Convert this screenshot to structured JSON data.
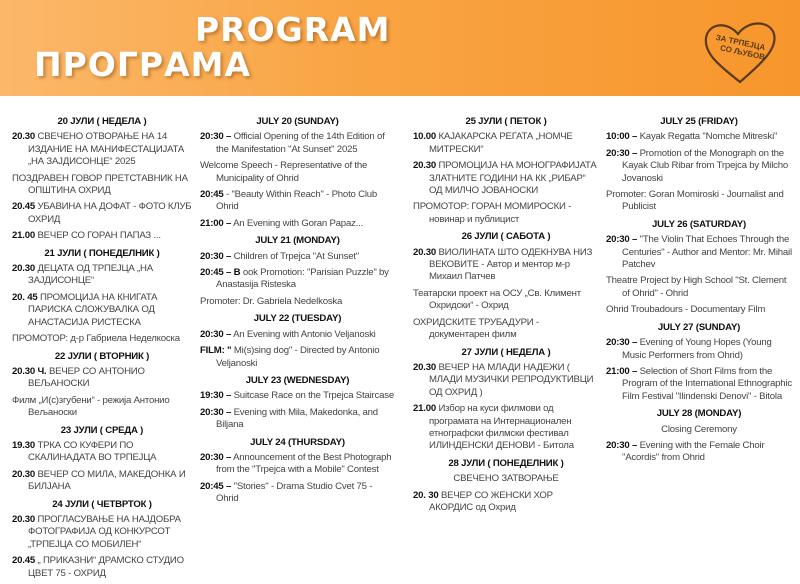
{
  "header": {
    "title_en": "PROGRAM",
    "title_mk": "ПРОГРАМА",
    "logo_text_line1": "ЗА ТРПЕЈЦА",
    "logo_text_line2": "СО ЉУБОВ",
    "bg_color": "#f9a443"
  },
  "columns": [
    [
      {
        "day": "20 ЈУЛИ ( НЕДЕЛА )",
        "items": [
          {
            "time": "20.30",
            "text": "СВЕЧЕНО ОТВОРАЊЕ НА 14 ИЗДАНИЕ НА МАНИФЕСТАЦИЈАТА „НА ЗАЈДИСОНЦЕ“ 2025"
          },
          {
            "text": "ПОЗДРАВЕН ГОВОР ПРЕТСТАВНИК НА ОПШТИНА ОХРИД"
          },
          {
            "time": "20.45",
            "text": "УБАВИНА НА ДОФАТ - ФОТО КЛУБ ОХРИД"
          },
          {
            "time": "21.00",
            "text": "ВЕЧЕР СО ГОРАН ПАПАЗ ..."
          }
        ]
      },
      {
        "day": "21 ЈУЛИ ( ПОНЕДЕЛНИК )",
        "items": [
          {
            "time": "20.30",
            "text": "ДЕЦАТА ОД ТРПЕЈЦА „НА ЗАЈДИСОНЦЕ“"
          },
          {
            "time": "20. 45",
            "text": "ПРОМОЦИЈА НА КНИГАТА ПАРИСКА СЛОЖУВАЛКА ОД АНАСТАСИЈА РИСТЕСКА"
          },
          {
            "text": "ПРОМОТОР: д-р Габриела Неделкоска"
          }
        ]
      },
      {
        "day": "22 ЈУЛИ ( ВТОРНИК )",
        "items": [
          {
            "time": "20.30 Ч.",
            "text": "ВЕЧЕР СО АНТОНИО ВЕЉАНОСКИ"
          },
          {
            "text": "Филм „И(с)згубени“ - режија Антонио Вељаноски"
          }
        ]
      },
      {
        "day": "23 ЈУЛИ ( СРЕДА )",
        "items": [
          {
            "time": "19.30",
            "text": "ТРКА СО КУФЕРИ ПО СКАЛИНАДАТА ВО ТРПЕЈЦА"
          },
          {
            "time": "20.30",
            "text": "ВЕЧЕР СО МИЛА, МАКЕДОНКА И БИЛЈАНА"
          }
        ]
      },
      {
        "day": "24 ЈУЛИ ( ЧЕТВРТОК )",
        "items": [
          {
            "time": "20.30",
            "text": "ПРОГЛАСУВАЊЕ НА НАЈДОБРА ФОТОГРАФИЈА ОД КОНКУРСОТ „ТРПЕЈЦА СО МОБИЛЕН“"
          },
          {
            "time": "20.45",
            "text": "„ ПРИКАЗНИ“ ДРАМСКО СТУДИО ЦВЕТ 75 - ОХРИД"
          }
        ]
      }
    ],
    [
      {
        "day": "JULY 20 (SUNDAY)",
        "items": [
          {
            "time": "20:30 –",
            "text": "Official Opening of the 14th Edition of the Manifestation \"At Sunset\" 2025"
          },
          {
            "text": "Welcome Speech - Representative of the Municipality of Ohrid"
          },
          {
            "time": "20:45",
            "text": "- \"Beauty Within Reach\" - Photo Club Ohrid"
          },
          {
            "time": "21:00 –",
            "text": "An Evening with Goran Papaz..."
          }
        ]
      },
      {
        "day": "JULY 21 (MONDAY)",
        "items": [
          {
            "time": "20:30 –",
            "text": "Children of Trpejca \"At Sunset\""
          },
          {
            "time": "20:45 – B",
            "text": "ook Promotion: \"Parisian Puzzle\" by Anastasija Risteska"
          },
          {
            "text": "Promoter: Dr. Gabriela Nedelkoska"
          }
        ]
      },
      {
        "day": "JULY 22 (TUESDAY)",
        "items": [
          {
            "time": "20:30 –",
            "text": "An Evening with Antonio Veljanoski"
          },
          {
            "time": "FILM: \"",
            "text": "Mi(s)sing dog\" - Directed by Antonio Veljanoski"
          }
        ]
      },
      {
        "day": "JULY 23 (WEDNESDAY)",
        "items": [
          {
            "time": "19:30 –",
            "text": "Suitcase Race on the Trpejca Staircase"
          },
          {
            "time": "20:30 –",
            "text": "Evening with Mila, Makedonka, and Biljana"
          }
        ]
      },
      {
        "day": "JULY 24 (THURSDAY)",
        "items": [
          {
            "time": "20:30 –",
            "text": "Announcement of the Best Photograph from the \"Trpejca with a Mobile\" Contest"
          },
          {
            "time": "20:45 –",
            "text": "\"Stories\" - Drama Studio Cvet 75 - Ohrid"
          }
        ]
      }
    ],
    [
      {
        "day": "25 ЈУЛИ ( ПЕТОК )",
        "items": [
          {
            "time": "10.00",
            "text": "КАЈАКАРСКА РЕГАТА „НОМЧЕ МИТРЕСКИ“"
          },
          {
            "time": "20.30",
            "text": "ПРОМОЦИЈА НА МОНОГРАФИЈАТА ЗЛАТНИТЕ ГОДИНИ НА КК „РИБАР“ ОД МИЛЧО ЈОВАНОСКИ"
          },
          {
            "text": "ПРОМОТОР: ГОРАН МОМИРОСКИ - новинар и публицист"
          }
        ]
      },
      {
        "day": "26 ЈУЛИ ( САБОТА )",
        "items": [
          {
            "time": "20.30",
            "text": "ВИОЛИНАТА ШТО ОДЕКНУВА НИЗ ВЕКОВИТЕ - Автор и ментор м-р Михаил Патчев"
          },
          {
            "text": "Театарски проект на ОСУ „Св. Климент Охридски“ - Охрид"
          },
          {
            "text": "ОХРИДСКИТЕ ТРУБАДУРИ - документарен филм"
          }
        ]
      },
      {
        "day": "27 ЈУЛИ ( НЕДЕЛА )",
        "items": [
          {
            "time": "20.30",
            "text": "ВЕЧЕР НА МЛАДИ НАДЕЖИ ( МЛАДИ МУЗИЧКИ РЕПРОДУКТИВЦИ ОД ОХРИД )"
          },
          {
            "time": "21.00",
            "text": "Избор на куси филмови од програмата на Интернационален етнографски филмски фестивал ИЛИНДЕНСКИ ДЕНОВИ - Битола"
          }
        ]
      },
      {
        "day": "28 ЈУЛИ ( ПОНЕДЕЛНИК )",
        "subtitle": "СВЕЧЕНО ЗАТВОРАЊЕ",
        "items": [
          {
            "time": "20. 30",
            "text": "ВЕЧЕР СО ЖЕНСКИ ХОР АКОРДИС од Охрид"
          }
        ]
      }
    ],
    [
      {
        "day": "JULY 25 (FRIDAY)",
        "items": [
          {
            "time": "10:00 –",
            "text": "Kayak Regatta \"Nomche Mitreski\""
          },
          {
            "time": "20:30 –",
            "text": "Promotion of the Monograph on the Kayak Club Ribar from Trpejca by Milcho Jovanoski"
          },
          {
            "text": "Promoter: Goran Momiroski - Journalist and Publicist"
          }
        ]
      },
      {
        "day": "JULY 26 (SATURDAY)",
        "items": [
          {
            "time": "20:30 –",
            "text": "\"The Violin That Echoes Through the Centuries\" - Author and Mentor: Mr. Mihail Patchev"
          },
          {
            "text": "Theatre Project by High School \"St. Clement of Ohrid\" - Ohrid"
          },
          {
            "text": "Ohrid Troubadours - Documentary Film"
          }
        ]
      },
      {
        "day": "JULY 27 (SUNDAY)",
        "items": [
          {
            "time": "20:30 –",
            "text": "Evening of Young Hopes (Young Music Performers from Ohrid)"
          },
          {
            "time": "21:00 –",
            "text": "Selection of Short Films from the Program of the International Ethnographic Film Festival \"Ilindenski Denovi\" - Bitola"
          }
        ]
      },
      {
        "day": "JULY 28 (MONDAY)",
        "subtitle": "Closing Ceremony",
        "items": [
          {
            "time": "20:30 –",
            "text": "Evening with the Female Choir \"Acordis\" from Ohrid"
          }
        ]
      }
    ]
  ]
}
